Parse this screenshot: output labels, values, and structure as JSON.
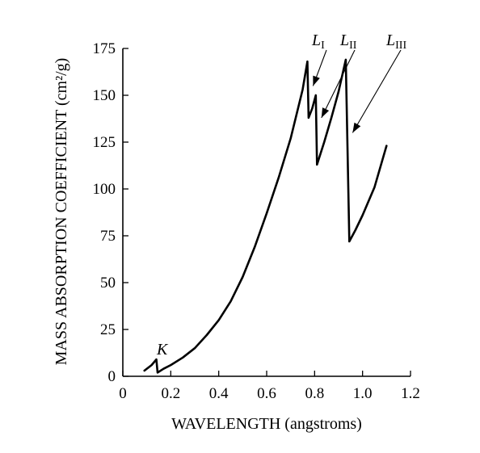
{
  "chart_data": {
    "type": "line",
    "title": "",
    "xlabel": "WAVELENGTH (angstroms)",
    "ylabel": "MASS ABSORPTION COEFFICIENT (cm²/g)",
    "xlim": [
      0,
      1.2
    ],
    "ylim": [
      0,
      175
    ],
    "x_ticks": [
      {
        "value": 0,
        "label": "0"
      },
      {
        "value": 0.2,
        "label": "0.2"
      },
      {
        "value": 0.4,
        "label": "0.4"
      },
      {
        "value": 0.6,
        "label": "0.6"
      },
      {
        "value": 0.8,
        "label": "0.8"
      },
      {
        "value": 1.0,
        "label": "1.0"
      },
      {
        "value": 1.2,
        "label": "1.2"
      }
    ],
    "y_ticks": [
      {
        "value": 0,
        "label": "0"
      },
      {
        "value": 25,
        "label": "25"
      },
      {
        "value": 50,
        "label": "50"
      },
      {
        "value": 75,
        "label": "75"
      },
      {
        "value": 100,
        "label": "100"
      },
      {
        "value": 125,
        "label": "125"
      },
      {
        "value": 150,
        "label": "150"
      },
      {
        "value": 175,
        "label": "175"
      }
    ],
    "grid": false,
    "legend": "none",
    "series": [
      {
        "points": [
          [
            0.09,
            3
          ],
          [
            0.12,
            6
          ],
          [
            0.14,
            9
          ],
          [
            0.145,
            2
          ],
          [
            0.17,
            4
          ],
          [
            0.2,
            6
          ],
          [
            0.25,
            10
          ],
          [
            0.3,
            15
          ],
          [
            0.35,
            22
          ],
          [
            0.4,
            30
          ],
          [
            0.45,
            40
          ],
          [
            0.5,
            53
          ],
          [
            0.55,
            69
          ],
          [
            0.6,
            87
          ],
          [
            0.65,
            106
          ],
          [
            0.7,
            127
          ],
          [
            0.75,
            153
          ],
          [
            0.77,
            168
          ],
          [
            0.775,
            138
          ],
          [
            0.79,
            143
          ],
          [
            0.805,
            150
          ],
          [
            0.81,
            113
          ],
          [
            0.84,
            125
          ],
          [
            0.87,
            138
          ],
          [
            0.9,
            152
          ],
          [
            0.93,
            169
          ],
          [
            0.945,
            72
          ],
          [
            0.97,
            78
          ],
          [
            1.0,
            86
          ],
          [
            1.05,
            101
          ],
          [
            1.1,
            123
          ]
        ]
      }
    ],
    "annotations": [
      {
        "main": "K",
        "sub": "",
        "x": 0.145,
        "y": 9,
        "kind": "label"
      },
      {
        "main": "L",
        "sub": "I",
        "x": 0.78,
        "y": 155,
        "kind": "arrow"
      },
      {
        "main": "L",
        "sub": "II",
        "x": 0.815,
        "y": 138,
        "kind": "arrow"
      },
      {
        "main": "L",
        "sub": "III",
        "x": 0.945,
        "y": 130,
        "kind": "arrow"
      }
    ]
  }
}
